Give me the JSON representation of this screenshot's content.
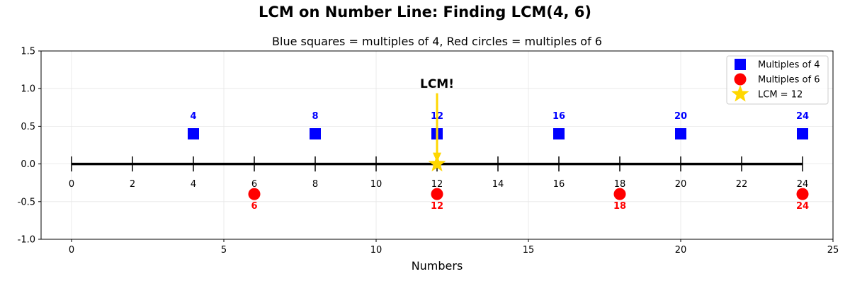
{
  "chart_data": {
    "type": "scatter",
    "title": "LCM on Number Line: Finding LCM(4, 6)",
    "subtitle": "Blue squares = multiples of 4, Red circles = multiples of 6",
    "xlabel": "Numbers",
    "ylabel": "",
    "xlim": [
      -1,
      25
    ],
    "ylim": [
      -1.0,
      1.5
    ],
    "x_ticks": [
      "0",
      "5",
      "10",
      "15",
      "20",
      "25"
    ],
    "y_ticks": [
      "-1.0",
      "-0.5",
      "0.0",
      "0.5",
      "1.0",
      "1.5"
    ],
    "grid": true,
    "legend_placement": "top-right",
    "number_line": {
      "range": [
        0,
        24
      ],
      "ticks": [
        0,
        2,
        4,
        6,
        8,
        10,
        12,
        14,
        16,
        18,
        20,
        22,
        24
      ],
      "tick_labels": [
        "0",
        "2",
        "4",
        "6",
        "8",
        "10",
        "12",
        "14",
        "16",
        "18",
        "20",
        "22",
        "24"
      ]
    },
    "series": [
      {
        "name": "Multiples of 4",
        "marker": "square",
        "color": "#0000ff",
        "y": 0.4,
        "x": [
          4,
          8,
          12,
          16,
          20,
          24
        ],
        "labels": [
          "4",
          "8",
          "12",
          "16",
          "20",
          "24"
        ]
      },
      {
        "name": "Multiples of 6",
        "marker": "circle",
        "color": "#ff0000",
        "y": -0.4,
        "x": [
          6,
          12,
          18,
          24
        ],
        "labels": [
          "6",
          "12",
          "18",
          "24"
        ]
      },
      {
        "name": "LCM = 12",
        "marker": "star",
        "color": "#ffd700",
        "y": 0,
        "x": [
          12
        ],
        "labels": []
      }
    ],
    "annotation": {
      "text": "LCM!",
      "text_position": [
        12,
        1.07
      ],
      "arrow_to": [
        12,
        0
      ],
      "color": "#ffd700"
    }
  }
}
